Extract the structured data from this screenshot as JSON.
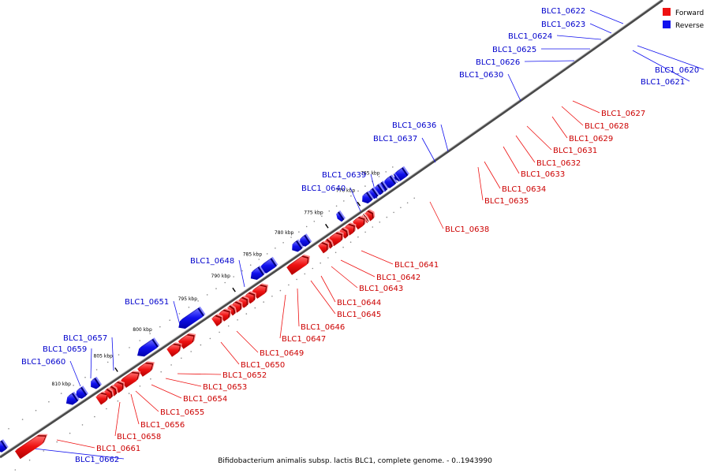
{
  "caption": "Bifidobacterium animalis subsp. lactis BLC1, complete genome. - 0..1943990",
  "legend": [
    {
      "label": "Forward",
      "color": "#ee1111"
    },
    {
      "label": "Reverse",
      "color": "#1111ee"
    }
  ],
  "ticks": [
    "765 kbp",
    "770 kbp",
    "775 kbp",
    "780 kbp",
    "785 kbp",
    "790 kbp",
    "795 kbp",
    "800 kbp",
    "805 kbp",
    "810 kbp"
  ],
  "genes": [
    {
      "name": "BLC1_0620",
      "strand": "reverse"
    },
    {
      "name": "BLC1_0621",
      "strand": "reverse"
    },
    {
      "name": "BLC1_0622",
      "strand": "reverse"
    },
    {
      "name": "BLC1_0623",
      "strand": "reverse"
    },
    {
      "name": "BLC1_0624",
      "strand": "reverse"
    },
    {
      "name": "BLC1_0625",
      "strand": "reverse"
    },
    {
      "name": "BLC1_0626",
      "strand": "reverse"
    },
    {
      "name": "BLC1_0627",
      "strand": "forward"
    },
    {
      "name": "BLC1_0628",
      "strand": "forward"
    },
    {
      "name": "BLC1_0629",
      "strand": "forward"
    },
    {
      "name": "BLC1_0630",
      "strand": "reverse"
    },
    {
      "name": "BLC1_0631",
      "strand": "forward"
    },
    {
      "name": "BLC1_0632",
      "strand": "forward"
    },
    {
      "name": "BLC1_0633",
      "strand": "forward"
    },
    {
      "name": "BLC1_0634",
      "strand": "forward"
    },
    {
      "name": "BLC1_0635",
      "strand": "forward"
    },
    {
      "name": "BLC1_0636",
      "strand": "reverse"
    },
    {
      "name": "BLC1_0637",
      "strand": "reverse"
    },
    {
      "name": "BLC1_0638",
      "strand": "forward"
    },
    {
      "name": "BLC1_0639",
      "strand": "reverse"
    },
    {
      "name": "BLC1_0640",
      "strand": "reverse"
    },
    {
      "name": "BLC1_0641",
      "strand": "forward"
    },
    {
      "name": "BLC1_0642",
      "strand": "forward"
    },
    {
      "name": "BLC1_0643",
      "strand": "forward"
    },
    {
      "name": "BLC1_0644",
      "strand": "forward"
    },
    {
      "name": "BLC1_0645",
      "strand": "forward"
    },
    {
      "name": "BLC1_0646",
      "strand": "forward"
    },
    {
      "name": "BLC1_0647",
      "strand": "forward"
    },
    {
      "name": "BLC1_0648",
      "strand": "reverse"
    },
    {
      "name": "BLC1_0649",
      "strand": "forward"
    },
    {
      "name": "BLC1_0650",
      "strand": "forward"
    },
    {
      "name": "BLC1_0651",
      "strand": "reverse"
    },
    {
      "name": "BLC1_0652",
      "strand": "forward"
    },
    {
      "name": "BLC1_0653",
      "strand": "forward"
    },
    {
      "name": "BLC1_0654",
      "strand": "forward"
    },
    {
      "name": "BLC1_0655",
      "strand": "forward"
    },
    {
      "name": "BLC1_0656",
      "strand": "forward"
    },
    {
      "name": "BLC1_0657",
      "strand": "reverse"
    },
    {
      "name": "BLC1_0658",
      "strand": "forward"
    },
    {
      "name": "BLC1_0659",
      "strand": "reverse"
    },
    {
      "name": "BLC1_0660",
      "strand": "reverse"
    },
    {
      "name": "BLC1_0661",
      "strand": "forward"
    },
    {
      "name": "BLC1_0662",
      "strand": "reverse"
    }
  ]
}
